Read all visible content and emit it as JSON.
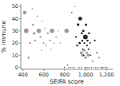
{
  "chart_data": {
    "type": "bubble",
    "xlabel": "SEIFA score",
    "ylabel": "% immune",
    "xlim": [
      380,
      1260
    ],
    "ylim": [
      -1.5,
      52
    ],
    "xticks": [
      400,
      600,
      800,
      {
        "value": 1000,
        "label": "1,000"
      },
      {
        "value": 1200,
        "label": "1,200"
      }
    ],
    "yticks": [
      0,
      10,
      20,
      30,
      40,
      50
    ],
    "grid": false,
    "series": [
      {
        "color": "#888888",
        "x": [
          418,
          432,
          455,
          468,
          490,
          498,
          508,
          518,
          538,
          552,
          568,
          578,
          588,
          598,
          612,
          622,
          638,
          658,
          668,
          678,
          698,
          718,
          738,
          758,
          818,
          958,
          972,
          986,
          1000,
          1012,
          1025
        ],
        "values": [
          45,
          30,
          8,
          20,
          48,
          35,
          28,
          22,
          42,
          30,
          25,
          14,
          38,
          20,
          32,
          18,
          28,
          22,
          15,
          30,
          20,
          25,
          30,
          20,
          30,
          12,
          10,
          14,
          8,
          12,
          10
        ],
        "sizes": [
          55,
          90,
          18,
          16,
          8,
          18,
          30,
          14,
          10,
          85,
          16,
          8,
          6,
          12,
          8,
          10,
          15,
          14,
          7,
          85,
          9,
          10,
          7,
          8,
          80,
          38,
          42,
          32,
          28,
          25,
          35
        ]
      },
      {
        "color": "#111111",
        "x": [
          798,
          828,
          838,
          858,
          868,
          878,
          888,
          898,
          908,
          918,
          928,
          938,
          943,
          948,
          958,
          963,
          968,
          973,
          978,
          983,
          988,
          993,
          998,
          1003,
          1008,
          1013,
          1018,
          1023,
          1028,
          1033,
          1038,
          1043,
          1048,
          1058,
          1068,
          1078,
          1088,
          1098,
          1108,
          1118,
          1128,
          1148,
          1158,
          1168,
          1183,
          1198,
          1208
        ],
        "values": [
          0,
          2,
          0,
          0,
          45,
          0,
          0,
          50,
          25,
          18,
          35,
          0,
          20,
          40,
          0,
          28,
          22,
          15,
          30,
          10,
          20,
          0,
          25,
          35,
          0,
          18,
          22,
          0,
          15,
          28,
          0,
          20,
          10,
          0,
          5,
          0,
          22,
          0,
          12,
          0,
          8,
          0,
          0,
          0,
          0,
          0,
          0
        ],
        "sizes": [
          5,
          6,
          4,
          4,
          6,
          3,
          4,
          5,
          15,
          17,
          32,
          5,
          25,
          65,
          4,
          22,
          19,
          11,
          28,
          8,
          14,
          5,
          95,
          25,
          6,
          17,
          20,
          4,
          12,
          16,
          3,
          11,
          9,
          4,
          6,
          3,
          14,
          5,
          8,
          4,
          6,
          4,
          3,
          4,
          3,
          4,
          3
        ]
      }
    ]
  }
}
